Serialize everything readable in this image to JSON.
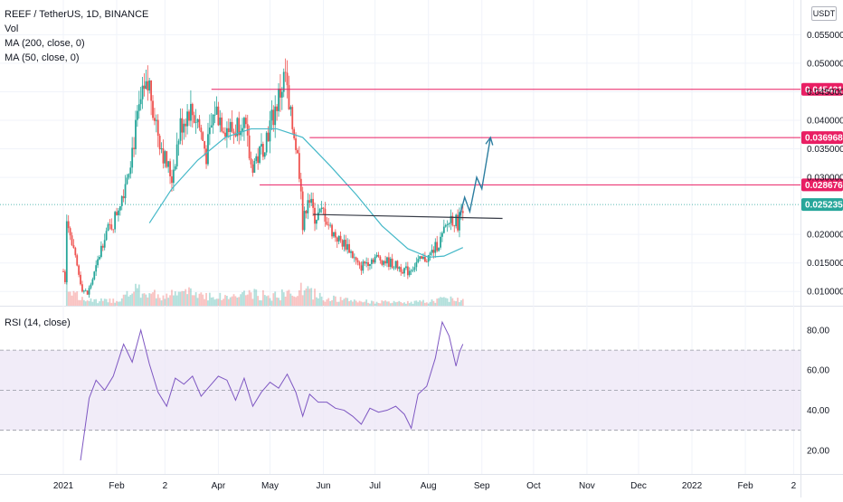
{
  "header": {
    "symbol": "REEF / TetherUS, 1D, BINANCE",
    "indicators": [
      "Vol",
      "MA (200, close, 0)",
      "MA (50, close, 0)"
    ],
    "currency": "USDT"
  },
  "rsi_panel": {
    "title": "RSI (14, close)"
  },
  "colors": {
    "up": "#26a69a",
    "down": "#ef5350",
    "ma": "#44b8c8",
    "level": "#e91e63",
    "current": "#26a69a",
    "rsi": "#7e57c2",
    "rsi_band": "#ede7f6",
    "trendline": "#363a45",
    "arrow": "#2c7da0"
  },
  "chart_data": [
    {
      "type": "candlestick",
      "title": "REEF / TetherUS, 1D, BINANCE",
      "y_ticks": [
        "0.055000",
        "0.050000",
        "0.045000",
        "0.040000",
        "0.035000",
        "0.030000",
        "0.020000",
        "0.015000",
        "0.010000"
      ],
      "x_ticks": [
        "2021",
        "Feb",
        "2",
        "Apr",
        "May",
        "Jun",
        "Jul",
        "Aug",
        "Sep",
        "Oct",
        "Nov",
        "Dec",
        "2022",
        "Feb",
        "2"
      ],
      "x_range": [
        "2021-01-01",
        "2022-03-05"
      ],
      "y_range": [
        0.0075,
        0.0595
      ],
      "price_path": [
        [
          "2021-01-01",
          0.0135
        ],
        [
          "2021-01-02",
          0.012
        ],
        [
          "2021-01-03",
          0.0235
        ],
        [
          "2021-01-06",
          0.018
        ],
        [
          "2021-01-12",
          0.0105
        ],
        [
          "2021-01-15",
          0.0095
        ],
        [
          "2021-01-20",
          0.014
        ],
        [
          "2021-01-25",
          0.02
        ],
        [
          "2021-01-30",
          0.022
        ],
        [
          "2021-02-05",
          0.028
        ],
        [
          "2021-02-10",
          0.035
        ],
        [
          "2021-02-15",
          0.043
        ],
        [
          "2021-02-20",
          0.046
        ],
        [
          "2021-02-25",
          0.038
        ],
        [
          "2021-03-01",
          0.033
        ],
        [
          "2021-03-05",
          0.03
        ],
        [
          "2021-03-10",
          0.039
        ],
        [
          "2021-03-15",
          0.042
        ],
        [
          "2021-03-20",
          0.04
        ],
        [
          "2021-03-25",
          0.034
        ],
        [
          "2021-03-30",
          0.042
        ],
        [
          "2021-04-05",
          0.039
        ],
        [
          "2021-04-10",
          0.038
        ],
        [
          "2021-04-15",
          0.041
        ],
        [
          "2021-04-20",
          0.032
        ],
        [
          "2021-04-25",
          0.034
        ],
        [
          "2021-05-01",
          0.039
        ],
        [
          "2021-05-05",
          0.043
        ],
        [
          "2021-05-10",
          0.048
        ],
        [
          "2021-05-12",
          0.041
        ],
        [
          "2021-05-15",
          0.038
        ],
        [
          "2021-05-19",
          0.029
        ],
        [
          "2021-05-20",
          0.021
        ],
        [
          "2021-05-23",
          0.027
        ],
        [
          "2021-05-27",
          0.023
        ],
        [
          "2021-06-01",
          0.024
        ],
        [
          "2021-06-05",
          0.021
        ],
        [
          "2021-06-10",
          0.019
        ],
        [
          "2021-06-15",
          0.018
        ],
        [
          "2021-06-22",
          0.014
        ],
        [
          "2021-06-25",
          0.015
        ],
        [
          "2021-07-01",
          0.016
        ],
        [
          "2021-07-10",
          0.015
        ],
        [
          "2021-07-20",
          0.0135
        ],
        [
          "2021-07-25",
          0.015
        ],
        [
          "2021-08-01",
          0.016
        ],
        [
          "2021-08-08",
          0.019
        ],
        [
          "2021-08-14",
          0.023
        ],
        [
          "2021-08-18",
          0.022
        ],
        [
          "2021-08-21",
          0.0252
        ]
      ],
      "series": [
        {
          "name": "MA (50, close, 0)",
          "points": [
            [
              "2021-02-20",
              0.022
            ],
            [
              "2021-03-05",
              0.028
            ],
            [
              "2021-03-20",
              0.033
            ],
            [
              "2021-04-05",
              0.037
            ],
            [
              "2021-04-20",
              0.0385
            ],
            [
              "2021-05-05",
              0.0385
            ],
            [
              "2021-05-20",
              0.037
            ],
            [
              "2021-06-05",
              0.032
            ],
            [
              "2021-06-20",
              0.027
            ],
            [
              "2021-07-05",
              0.0215
            ],
            [
              "2021-07-20",
              0.0175
            ],
            [
              "2021-08-01",
              0.016
            ],
            [
              "2021-08-10",
              0.0162
            ],
            [
              "2021-08-21",
              0.0177
            ]
          ]
        }
      ],
      "horizontal_levels": [
        {
          "label": "0.045421",
          "value": 0.045421,
          "from": "2021-03-28"
        },
        {
          "label": "0.036968",
          "value": 0.036968,
          "from": "2021-05-24"
        },
        {
          "label": "0.028676",
          "value": 0.028676,
          "from": "2021-04-25"
        }
      ],
      "current_price": {
        "label": "0.025235",
        "value": 0.025235
      },
      "trendline": {
        "from": [
          "2021-05-26",
          0.0235
        ],
        "to": [
          "2021-09-13",
          0.0228
        ]
      },
      "projection": [
        [
          "2021-08-19",
          0.023
        ],
        [
          "2021-08-22",
          0.0265
        ],
        [
          "2021-08-25",
          0.024
        ],
        [
          "2021-08-29",
          0.03
        ],
        [
          "2021-09-01",
          0.028
        ],
        [
          "2021-09-06",
          0.037
        ]
      ],
      "volume": [
        [
          "2021-01-03",
          1.0
        ],
        [
          "2021-01-10",
          0.25
        ],
        [
          "2021-01-20",
          0.18
        ],
        [
          "2021-02-01",
          0.2
        ],
        [
          "2021-02-12",
          0.55
        ],
        [
          "2021-02-20",
          0.45
        ],
        [
          "2021-03-01",
          0.35
        ],
        [
          "2021-03-12",
          0.5
        ],
        [
          "2021-03-25",
          0.4
        ],
        [
          "2021-04-05",
          0.3
        ],
        [
          "2021-04-18",
          0.45
        ],
        [
          "2021-05-01",
          0.35
        ],
        [
          "2021-05-10",
          0.42
        ],
        [
          "2021-05-20",
          0.6
        ],
        [
          "2021-06-01",
          0.3
        ],
        [
          "2021-06-15",
          0.2
        ],
        [
          "2021-07-01",
          0.14
        ],
        [
          "2021-07-15",
          0.12
        ],
        [
          "2021-08-01",
          0.15
        ],
        [
          "2021-08-12",
          0.28
        ],
        [
          "2021-08-21",
          0.2
        ]
      ]
    },
    {
      "type": "line",
      "title": "RSI (14, close)",
      "y_ticks": [
        "80.00",
        "60.00",
        "40.00",
        "20.00"
      ],
      "y_range": [
        10,
        89
      ],
      "band": [
        30,
        70
      ],
      "midline": 50,
      "series": [
        {
          "name": "RSI (14, close)",
          "points": [
            [
              "2021-01-11",
              15
            ],
            [
              "2021-01-16",
              46
            ],
            [
              "2021-01-20",
              55
            ],
            [
              "2021-01-25",
              50
            ],
            [
              "2021-01-30",
              57
            ],
            [
              "2021-02-05",
              73
            ],
            [
              "2021-02-10",
              64
            ],
            [
              "2021-02-15",
              80
            ],
            [
              "2021-02-20",
              63
            ],
            [
              "2021-02-25",
              49
            ],
            [
              "2021-03-02",
              42
            ],
            [
              "2021-03-07",
              56
            ],
            [
              "2021-03-12",
              53
            ],
            [
              "2021-03-17",
              57
            ],
            [
              "2021-03-22",
              47
            ],
            [
              "2021-03-27",
              52
            ],
            [
              "2021-04-01",
              57
            ],
            [
              "2021-04-06",
              55
            ],
            [
              "2021-04-11",
              45
            ],
            [
              "2021-04-16",
              56
            ],
            [
              "2021-04-21",
              42
            ],
            [
              "2021-04-26",
              49
            ],
            [
              "2021-05-01",
              54
            ],
            [
              "2021-05-06",
              51
            ],
            [
              "2021-05-11",
              58
            ],
            [
              "2021-05-16",
              49
            ],
            [
              "2021-05-20",
              37
            ],
            [
              "2021-05-24",
              48
            ],
            [
              "2021-05-29",
              44
            ],
            [
              "2021-06-03",
              44
            ],
            [
              "2021-06-08",
              41
            ],
            [
              "2021-06-13",
              40
            ],
            [
              "2021-06-18",
              37
            ],
            [
              "2021-06-23",
              33
            ],
            [
              "2021-06-28",
              41
            ],
            [
              "2021-07-03",
              39
            ],
            [
              "2021-07-08",
              40
            ],
            [
              "2021-07-13",
              42
            ],
            [
              "2021-07-18",
              38
            ],
            [
              "2021-07-22",
              31
            ],
            [
              "2021-07-26",
              48
            ],
            [
              "2021-07-31",
              52
            ],
            [
              "2021-08-05",
              66
            ],
            [
              "2021-08-09",
              84
            ],
            [
              "2021-08-13",
              77
            ],
            [
              "2021-08-17",
              62
            ],
            [
              "2021-08-19",
              69
            ],
            [
              "2021-08-21",
              73
            ]
          ]
        }
      ]
    }
  ]
}
